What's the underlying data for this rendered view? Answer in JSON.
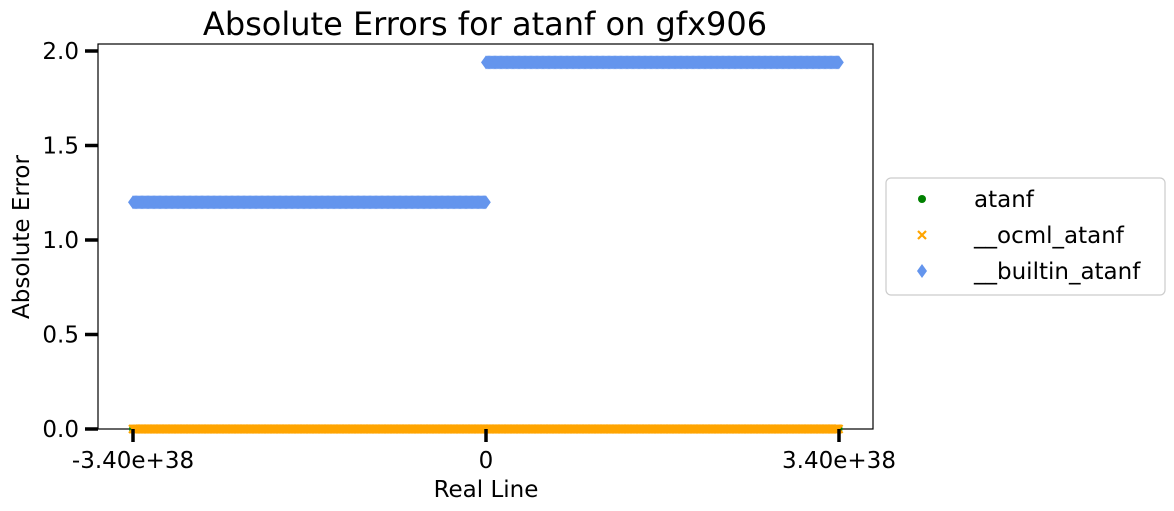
{
  "chart_data": {
    "type": "scatter",
    "title": "Absolute Errors for atanf on gfx906",
    "xlabel": "Real Line",
    "ylabel": "Absolute Error",
    "xlim": [
      -3.6e+38,
      3.7e+38
    ],
    "ylim": [
      0,
      2.05
    ],
    "x_ticks": [
      {
        "value": -3.4e+38,
        "label": "-3.40e+38"
      },
      {
        "value": 0,
        "label": "0"
      },
      {
        "value": 3.4e+38,
        "label": "3.40e+38"
      }
    ],
    "y_ticks": [
      {
        "value": 0.0,
        "label": "0.0"
      },
      {
        "value": 0.5,
        "label": "0.5"
      },
      {
        "value": 1.0,
        "label": "1.0"
      },
      {
        "value": 1.5,
        "label": "1.5"
      },
      {
        "value": 2.0,
        "label": "2.0"
      }
    ],
    "legend_position": "right",
    "series": [
      {
        "name": "atanf",
        "marker": "circle",
        "color": "#008000",
        "segments": [
          {
            "x_start": -3.4e+38,
            "x_end": 3.4e+38,
            "y": 0.0
          }
        ]
      },
      {
        "name": "__ocml_atanf",
        "marker": "x",
        "color": "#ffa500",
        "segments": [
          {
            "x_start": -3.4e+38,
            "x_end": 3.4e+38,
            "y": 0.0
          }
        ]
      },
      {
        "name": "__builtin_atanf",
        "marker": "diamond",
        "color": "#6495ed",
        "segments": [
          {
            "x_start": -3.4e+38,
            "x_end": 0,
            "y": 1.2
          },
          {
            "x_start": 0,
            "x_end": 3.4e+38,
            "y": 1.94
          }
        ]
      }
    ]
  }
}
